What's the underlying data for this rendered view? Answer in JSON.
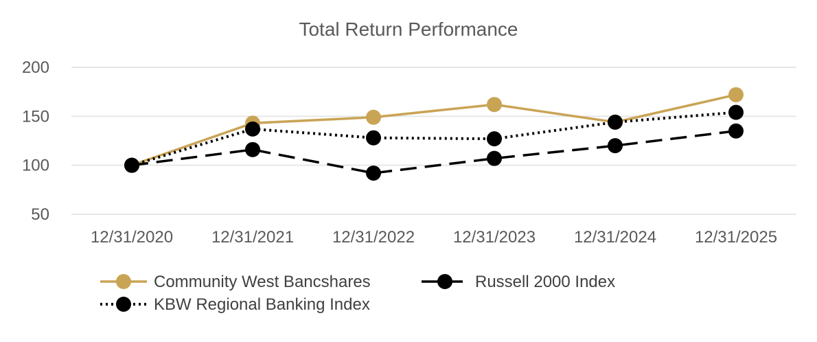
{
  "chart_data": {
    "type": "line",
    "title": "Total Return Performance",
    "xlabel": "",
    "ylabel": "",
    "categories": [
      "12/31/2020",
      "12/31/2021",
      "12/31/2022",
      "12/31/2023",
      "12/31/2024",
      "12/31/2025"
    ],
    "ylim": [
      50,
      200
    ],
    "yticks": [
      50,
      100,
      150,
      200
    ],
    "grid": true,
    "legend_position": "bottom",
    "series": [
      {
        "name": "Community West Bancshares",
        "values": [
          100,
          143,
          149,
          162,
          144,
          172
        ],
        "color": "#c9a455",
        "line_style": "solid"
      },
      {
        "name": "Russell 2000 Index",
        "values": [
          100,
          116,
          92,
          107,
          120,
          135
        ],
        "color": "#000000",
        "line_style": "dashed"
      },
      {
        "name": "KBW Regional Banking Index",
        "values": [
          100,
          137,
          128,
          127,
          144,
          154
        ],
        "color": "#000000",
        "line_style": "dotted"
      }
    ]
  }
}
